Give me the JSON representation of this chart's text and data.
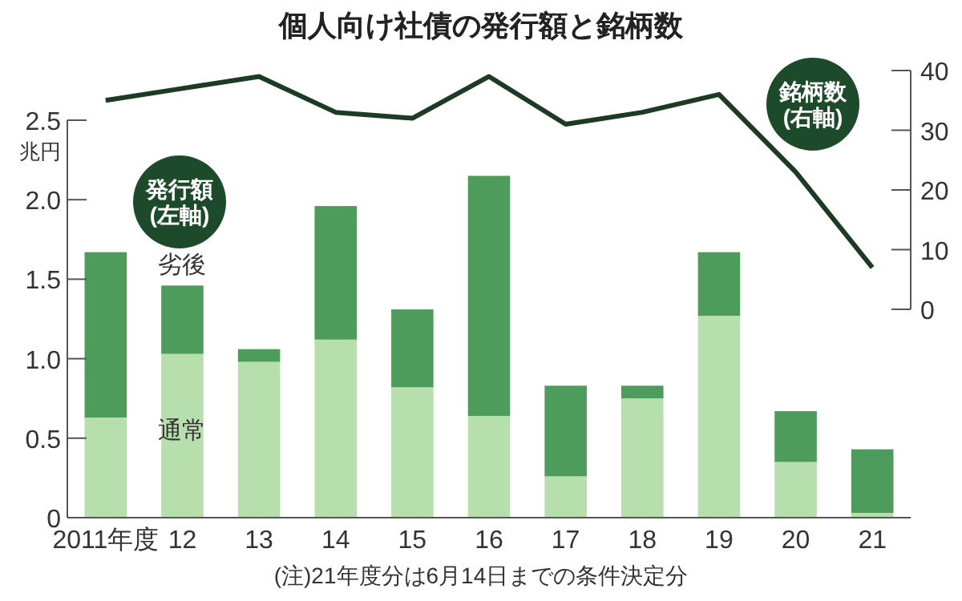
{
  "chart_data": {
    "type": "bar",
    "stacked": true,
    "title": "個人向け社債の発行額と銘柄数",
    "ylabel": "兆円",
    "y2label": "銘柄数(右軸)",
    "categories": [
      "2011年度",
      "12",
      "13",
      "14",
      "15",
      "16",
      "17",
      "18",
      "19",
      "20",
      "21"
    ],
    "series": [
      {
        "name": "通常",
        "color": "#b7dfae",
        "values": [
          0.63,
          1.03,
          0.98,
          1.12,
          0.82,
          0.64,
          0.26,
          0.75,
          1.27,
          0.35,
          0.03
        ]
      },
      {
        "name": "劣後",
        "color": "#4e9c5c",
        "values": [
          1.04,
          0.43,
          0.08,
          0.84,
          0.49,
          1.51,
          0.57,
          0.08,
          0.4,
          0.32,
          0.4
        ]
      },
      {
        "type": "line",
        "axis": "y2",
        "color": "#1d3a24",
        "values": [
          35,
          37,
          39,
          33,
          32,
          39,
          31,
          33,
          36,
          23,
          7
        ]
      }
    ],
    "ylim": [
      0,
      2.5
    ],
    "yticks": [
      0,
      0.5,
      {
        "value": 1,
        "label": "1.0"
      },
      1.5,
      {
        "value": 2,
        "label": "2.0"
      },
      2.5
    ],
    "y2lim": [
      0,
      40
    ],
    "y2ticks": [
      0,
      10,
      20,
      30,
      40
    ],
    "annotations": [
      "発行額(左軸)",
      "(注)21年度分は6月14日までの条件決定分"
    ]
  }
}
